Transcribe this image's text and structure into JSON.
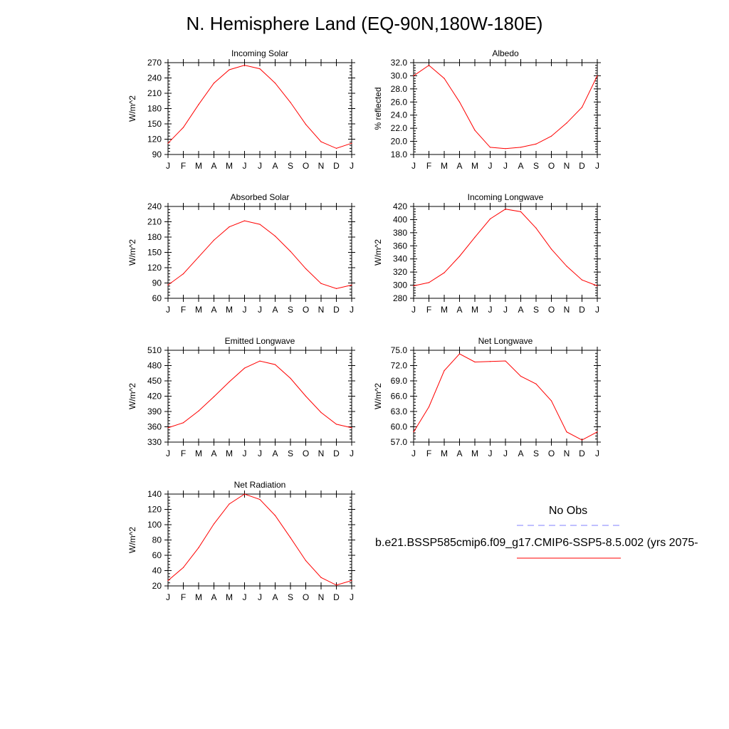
{
  "title": "N. Hemisphere Land (EQ-90N,180W-180E)",
  "months": [
    "J",
    "F",
    "M",
    "A",
    "M",
    "J",
    "J",
    "A",
    "S",
    "O",
    "N",
    "D",
    "J"
  ],
  "legend": {
    "obs_label": "No Obs",
    "model_label": "b.e21.BSSP585cmip6.f09_g17.CMIP6-SSP5-8.5.002 (yrs 2075-",
    "obs_color": "#8080ff",
    "model_color": "#ff0000"
  },
  "chart_data": [
    {
      "type": "line",
      "title": "Incoming Solar",
      "ylabel": "W/m^2",
      "ylim": [
        90,
        270
      ],
      "yticks": [
        "90",
        "120",
        "150",
        "180",
        "210",
        "240",
        "270"
      ],
      "series": [
        {
          "name": "b.e21.BSSP585cmip6.f09_g17.CMIP6-SSP5-8.5.002 (yrs 2075-",
          "values": [
            112,
            143,
            188,
            230,
            256,
            265,
            258,
            230,
            192,
            149,
            115,
            102,
            112
          ]
        }
      ]
    },
    {
      "type": "line",
      "title": "Albedo",
      "ylabel": "% reflected",
      "ylim": [
        18.0,
        32.0
      ],
      "yticks": [
        "18.0",
        "20.0",
        "22.0",
        "24.0",
        "26.0",
        "28.0",
        "30.0",
        "32.0"
      ],
      "series": [
        {
          "name": "b.e21.BSSP585cmip6.f09_g17.CMIP6-SSP5-8.5.002 (yrs 2075-",
          "values": [
            30.0,
            31.6,
            29.6,
            26.0,
            21.7,
            19.1,
            18.9,
            19.1,
            19.6,
            20.8,
            22.8,
            25.2,
            30.0
          ]
        }
      ]
    },
    {
      "type": "line",
      "title": "Absorbed Solar",
      "ylabel": "W/m^2",
      "ylim": [
        60,
        240
      ],
      "yticks": [
        "60",
        "90",
        "120",
        "150",
        "180",
        "210",
        "240"
      ],
      "series": [
        {
          "name": "b.e21.BSSP585cmip6.f09_g17.CMIP6-SSP5-8.5.002 (yrs 2075-",
          "values": [
            86,
            108,
            141,
            174,
            200,
            212,
            205,
            182,
            152,
            118,
            89,
            79,
            86
          ]
        }
      ]
    },
    {
      "type": "line",
      "title": "Incoming Longwave",
      "ylabel": "W/m^2",
      "ylim": [
        280,
        420
      ],
      "yticks": [
        "280",
        "300",
        "320",
        "340",
        "360",
        "380",
        "400",
        "420"
      ],
      "series": [
        {
          "name": "b.e21.BSSP585cmip6.f09_g17.CMIP6-SSP5-8.5.002 (yrs 2075-",
          "values": [
            299,
            304,
            319,
            344,
            373,
            401,
            416,
            412,
            387,
            355,
            329,
            308,
            299
          ]
        }
      ]
    },
    {
      "type": "line",
      "title": "Emitted Longwave",
      "ylabel": "W/m^2",
      "ylim": [
        330,
        510
      ],
      "yticks": [
        "330",
        "360",
        "390",
        "420",
        "450",
        "480",
        "510"
      ],
      "series": [
        {
          "name": "b.e21.BSSP585cmip6.f09_g17.CMIP6-SSP5-8.5.002 (yrs 2075-",
          "values": [
            358,
            368,
            391,
            419,
            448,
            475,
            489,
            482,
            455,
            420,
            388,
            365,
            358
          ]
        }
      ]
    },
    {
      "type": "line",
      "title": "Net Longwave",
      "ylabel": "W/m^2",
      "ylim": [
        57.0,
        75.0
      ],
      "yticks": [
        "57.0",
        "60.0",
        "63.0",
        "66.0",
        "69.0",
        "72.0",
        "75.0"
      ],
      "series": [
        {
          "name": "b.e21.BSSP585cmip6.f09_g17.CMIP6-SSP5-8.5.002 (yrs 2075-",
          "values": [
            59.0,
            63.9,
            71.0,
            74.3,
            72.7,
            72.8,
            72.9,
            69.9,
            68.4,
            65.1,
            59.0,
            57.4,
            59.0
          ]
        }
      ]
    },
    {
      "type": "line",
      "title": "Net Radiation",
      "ylabel": "W/m^2",
      "ylim": [
        20,
        140
      ],
      "yticks": [
        "20",
        "40",
        "60",
        "80",
        "100",
        "120",
        "140"
      ],
      "series": [
        {
          "name": "b.e21.BSSP585cmip6.f09_g17.CMIP6-SSP5-8.5.002 (yrs 2075-",
          "values": [
            27,
            44,
            70,
            101,
            127,
            140,
            133,
            112,
            83,
            53,
            31,
            21,
            27
          ]
        }
      ]
    }
  ]
}
